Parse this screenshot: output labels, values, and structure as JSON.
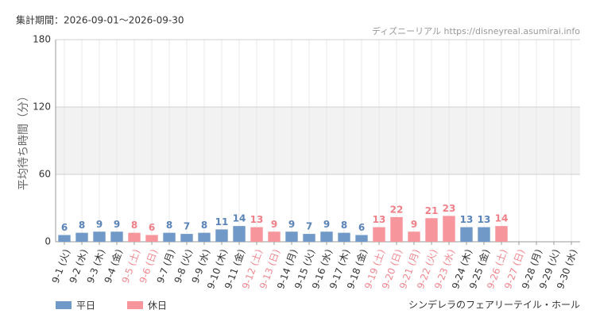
{
  "chart_data": {
    "type": "bar",
    "title": "集計期間：2026-09-01〜2026-09-30",
    "source": "ディズニーリアル https://disneyreal.asumirai.info",
    "footer": "シンデレラのフェアリーテイル・ホール",
    "y_label": "平均待ち時間（分）",
    "categories": [
      "9-1 (火)",
      "9-2 (水)",
      "9-3 (木)",
      "9-4 (金)",
      "9-5 (土)",
      "9-6 (日)",
      "9-7 (月)",
      "9-8 (火)",
      "9-9 (水)",
      "9-10 (木)",
      "9-11 (金)",
      "9-12 (土)",
      "9-13 (日)",
      "9-14 (月)",
      "9-15 (火)",
      "9-16 (水)",
      "9-17 (木)",
      "9-18 (金)",
      "9-19 (土)",
      "9-20 (日)",
      "9-21 (月)",
      "9-22 (火)",
      "9-23 (水)",
      "9-24 (木)",
      "9-25 (金)",
      "9-26 (土)",
      "9-27 (日)",
      "9-28 (月)",
      "9-29 (火)",
      "9-30 (水)"
    ],
    "category_label_colors": [
      "#333",
      "#333",
      "#333",
      "#333",
      "#f08890",
      "#f08890",
      "#333",
      "#333",
      "#333",
      "#333",
      "#333",
      "#f08890",
      "#f08890",
      "#333",
      "#333",
      "#333",
      "#333",
      "#333",
      "#f08890",
      "#f08890",
      "#f08890",
      "#f08890",
      "#f08890",
      "#333",
      "#333",
      "#f08890",
      "#f08890",
      "#333",
      "#333",
      "#333"
    ],
    "series": [
      {
        "name": "平日",
        "color": "#7099c7",
        "label_color": "#5a84b8",
        "values": [
          6,
          8,
          9,
          9,
          null,
          null,
          8,
          7,
          8,
          11,
          14,
          null,
          null,
          9,
          7,
          9,
          8,
          6,
          null,
          null,
          null,
          null,
          null,
          13,
          13,
          null,
          null,
          null,
          null,
          null
        ]
      },
      {
        "name": "休日",
        "color": "#f6959c",
        "label_color": "#f07f88",
        "values": [
          null,
          null,
          null,
          null,
          8,
          6,
          null,
          null,
          null,
          null,
          null,
          13,
          9,
          null,
          null,
          null,
          null,
          null,
          13,
          22,
          9,
          21,
          23,
          null,
          null,
          14,
          null,
          null,
          null,
          null
        ]
      }
    ],
    "ylim": [
      0,
      180
    ],
    "yticks": [
      0,
      60,
      120,
      180
    ],
    "shaded_band": [
      60,
      120
    ],
    "grid": true
  }
}
